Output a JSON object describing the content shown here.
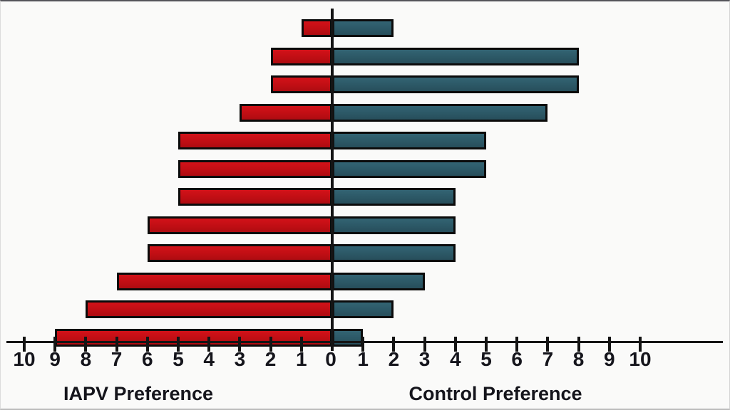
{
  "page": {
    "background": "#fafaf9"
  },
  "chart_data": {
    "type": "bar",
    "variant": "horizontal-diverging-tornado",
    "title": "",
    "rows": 12,
    "series": [
      {
        "name": "IAPV Preference",
        "side": "left",
        "color": "#c81016",
        "values": [
          1,
          2,
          2,
          3,
          5,
          5,
          5,
          6,
          6,
          7,
          8,
          9
        ]
      },
      {
        "name": "Control Preference",
        "side": "right",
        "color": "#2c5866",
        "values": [
          2,
          8,
          8,
          7,
          5,
          5,
          4,
          4,
          4,
          3,
          2,
          1
        ]
      }
    ],
    "axis": {
      "orientation": "horizontal",
      "unit_range": [
        0,
        10
      ],
      "tick_interval": 1,
      "left_tick_labels": [
        "10",
        "9",
        "8",
        "7",
        "6",
        "5",
        "4",
        "3",
        "2",
        "1"
      ],
      "center_label": "0",
      "right_tick_labels": [
        "1",
        "2",
        "3",
        "4",
        "5",
        "6",
        "7",
        "8",
        "9",
        "10"
      ],
      "grid": false,
      "legend": "none"
    },
    "xlabel_left": "IAPV Preference",
    "xlabel_right": "Control Preference"
  },
  "colors": {
    "bar_left_fill": "#c81016",
    "bar_right_fill": "#2c5866",
    "bar_border": "#0b0b0b",
    "axis_line": "#141414",
    "label_text": "#15151c"
  }
}
